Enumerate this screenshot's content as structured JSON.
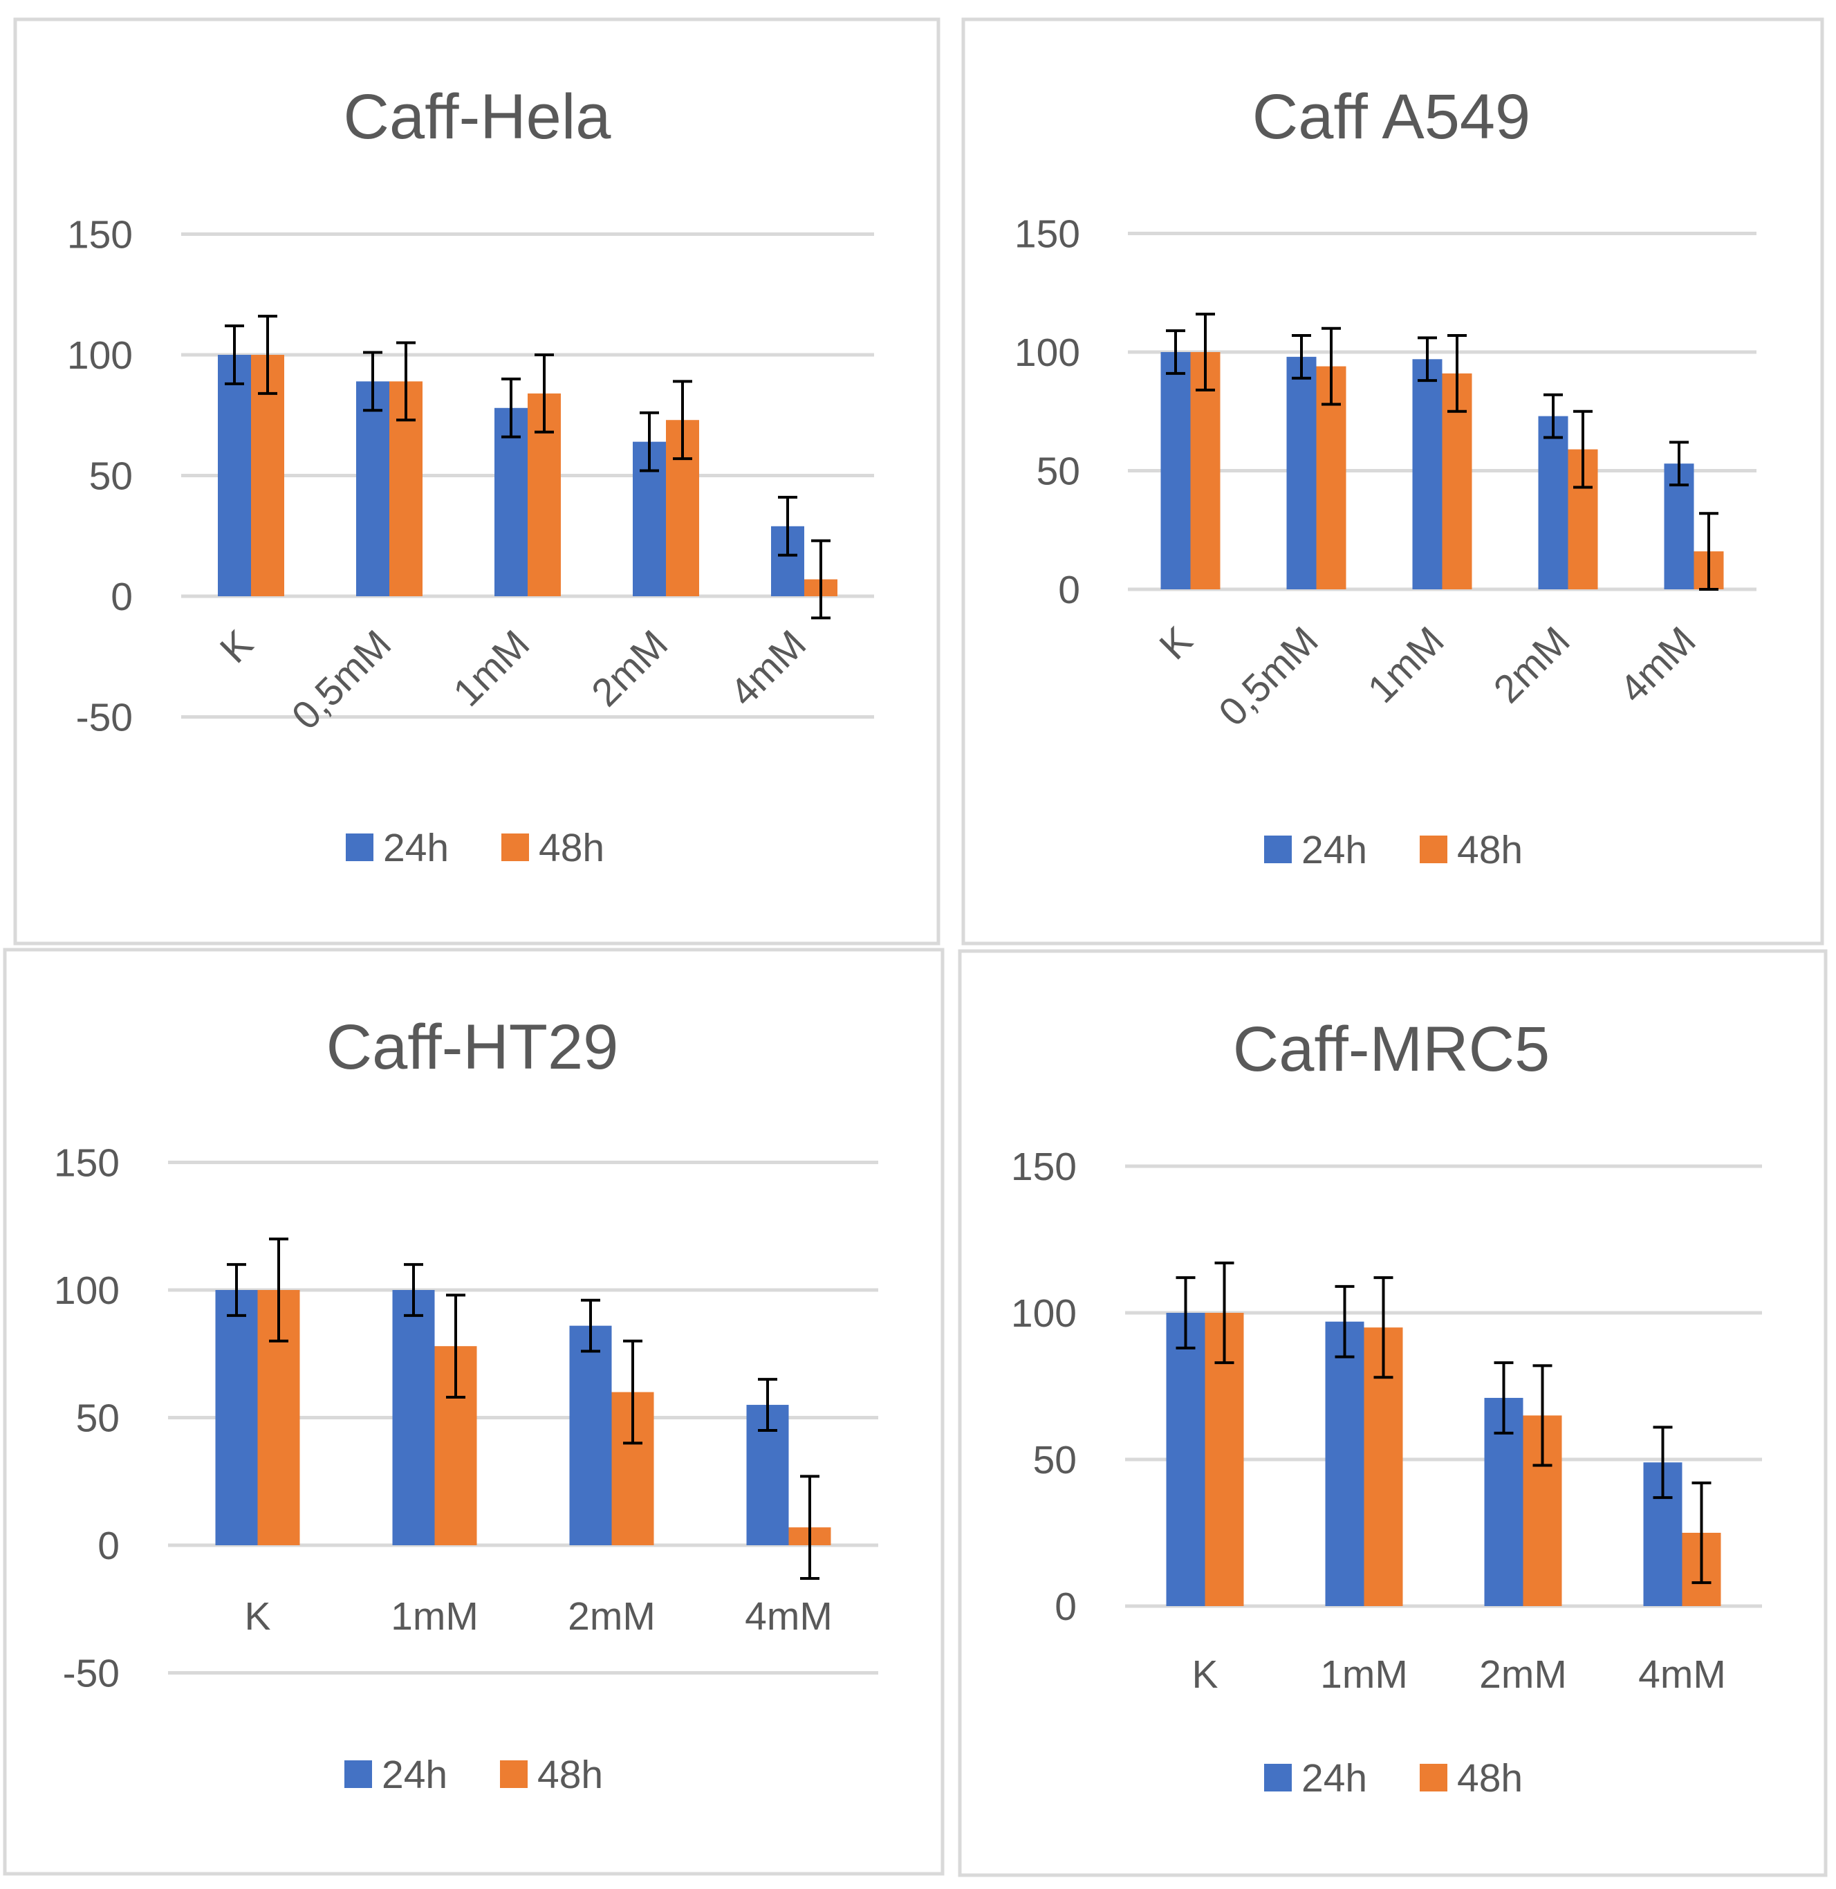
{
  "chart_data": [
    {
      "type": "bar",
      "title": "Caff-Hela",
      "categories": [
        "K",
        "0,5mM",
        "1mM",
        "2mM",
        "4mM"
      ],
      "series": [
        {
          "name": "24h",
          "color": "#4472c4",
          "values": [
            100,
            89,
            78,
            64,
            29
          ],
          "errors": [
            12,
            12,
            12,
            12,
            12
          ]
        },
        {
          "name": "48h",
          "color": "#ed7d31",
          "values": [
            100,
            89,
            84,
            73,
            7
          ],
          "errors": [
            16,
            16,
            16,
            16,
            16
          ]
        }
      ],
      "yticks": [
        150,
        100,
        50,
        0,
        -50
      ],
      "ylim": [
        -50,
        150
      ],
      "xlabel": "",
      "ylabel": "",
      "category_label_rotation": -45,
      "legend_position": "bottom"
    },
    {
      "type": "bar",
      "title": "Caff A549",
      "categories": [
        "K",
        "0,5mM",
        "1mM",
        "2mM",
        "4mM"
      ],
      "series": [
        {
          "name": "24h",
          "color": "#4472c4",
          "values": [
            100,
            98,
            97,
            73,
            53
          ],
          "errors": [
            9,
            9,
            9,
            9,
            9
          ]
        },
        {
          "name": "48h",
          "color": "#ed7d31",
          "values": [
            100,
            94,
            91,
            59,
            16
          ],
          "errors": [
            16,
            16,
            16,
            16,
            16
          ]
        }
      ],
      "yticks": [
        150,
        100,
        50,
        0
      ],
      "ylim": [
        0,
        150
      ],
      "xlabel": "",
      "ylabel": "",
      "category_label_rotation": -45,
      "legend_position": "bottom"
    },
    {
      "type": "bar",
      "title": "Caff-HT29",
      "categories": [
        "K",
        "1mM",
        "2mM",
        "4mM"
      ],
      "series": [
        {
          "name": "24h",
          "color": "#4472c4",
          "values": [
            100,
            100,
            86,
            55
          ],
          "errors": [
            10,
            10,
            10,
            10
          ]
        },
        {
          "name": "48h",
          "color": "#ed7d31",
          "values": [
            100,
            78,
            60,
            7
          ],
          "errors": [
            20,
            20,
            20,
            20
          ]
        }
      ],
      "yticks": [
        150,
        100,
        50,
        0,
        -50
      ],
      "ylim": [
        -50,
        150
      ],
      "xlabel": "",
      "ylabel": "",
      "category_label_rotation": 0,
      "legend_position": "bottom"
    },
    {
      "type": "bar",
      "title": "Caff-MRC5",
      "categories": [
        "K",
        "1mM",
        "2mM",
        "4mM"
      ],
      "series": [
        {
          "name": "24h",
          "color": "#4472c4",
          "values": [
            100,
            97,
            71,
            49
          ],
          "errors": [
            12,
            12,
            12,
            12
          ]
        },
        {
          "name": "48h",
          "color": "#ed7d31",
          "values": [
            100,
            95,
            65,
            25
          ],
          "errors": [
            17,
            17,
            17,
            17
          ]
        }
      ],
      "yticks": [
        150,
        100,
        50,
        0
      ],
      "ylim": [
        0,
        150
      ],
      "xlabel": "",
      "ylabel": "",
      "category_label_rotation": 0,
      "legend_position": "bottom"
    }
  ]
}
